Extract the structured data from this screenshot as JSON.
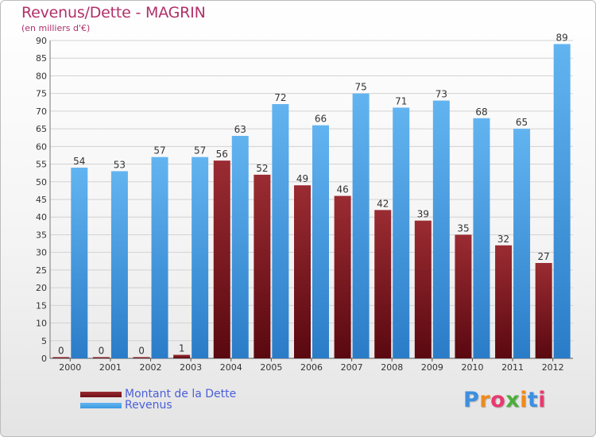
{
  "chart_data": {
    "type": "bar",
    "title": "Revenus/Dette - MAGRIN",
    "subtitle": "(en milliers d'€)",
    "categories": [
      "2000",
      "2001",
      "2002",
      "2003",
      "2004",
      "2005",
      "2006",
      "2007",
      "2008",
      "2009",
      "2010",
      "2011",
      "2012"
    ],
    "series": [
      {
        "name": "Montant de la Dette",
        "values": [
          0,
          0,
          0,
          1,
          56,
          52,
          49,
          46,
          42,
          39,
          35,
          32,
          27
        ],
        "color": "#6e1016"
      },
      {
        "name": "Revenus",
        "values": [
          54,
          53,
          57,
          57,
          63,
          72,
          66,
          75,
          71,
          73,
          68,
          65,
          89
        ],
        "color": "#3d9ae2"
      }
    ],
    "ylim": [
      0,
      90
    ],
    "yticks": [
      0,
      5,
      10,
      15,
      20,
      25,
      30,
      35,
      40,
      45,
      50,
      55,
      60,
      65,
      70,
      75,
      80,
      85,
      90
    ],
    "grid": true,
    "legend_position": "bottom-left"
  },
  "logo": {
    "text": "Proxiti",
    "letters": [
      "P",
      "r",
      "o",
      "x",
      "i",
      "t",
      "i"
    ],
    "colors": [
      "#3d8fe0",
      "#f08a1c",
      "#e83a6f",
      "#4cae3a",
      "#f08a1c",
      "#3d8fe0",
      "#e83a6f"
    ]
  }
}
